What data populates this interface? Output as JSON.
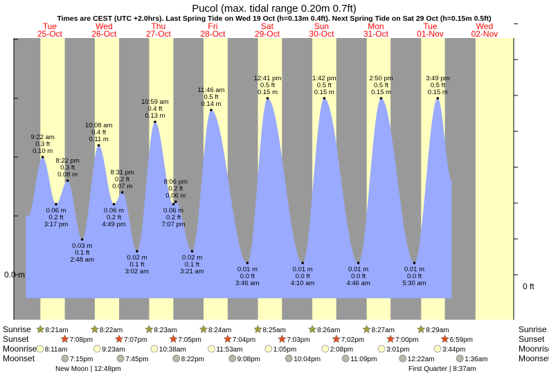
{
  "title": "Pucol (max. tidal range 0.20m 0.7ft)",
  "subtitle": "Times are CEST (UTC +2.0hrs). Last Spring Tide on Wed 19 Oct (h=0.13m 0.4ft). Next Spring Tide on Sat 29 Oct (h=0.15m 0.5ft)",
  "colors": {
    "night": "#999999",
    "day": "#ffffc0",
    "tide": "#99aaff",
    "date_text": "#ff0000",
    "sunset_star": "#e05020",
    "sunrise_star": "#a0a040"
  },
  "days": [
    {
      "dow": "Tue",
      "date": "25-Oct"
    },
    {
      "dow": "Wed",
      "date": "26-Oct"
    },
    {
      "dow": "Thu",
      "date": "27-Oct"
    },
    {
      "dow": "Fri",
      "date": "28-Oct"
    },
    {
      "dow": "Sat",
      "date": "29-Oct"
    },
    {
      "dow": "Sun",
      "date": "30-Oct"
    },
    {
      "dow": "Mon",
      "date": "31-Oct"
    },
    {
      "dow": "Tue",
      "date": "01-Nov"
    },
    {
      "dow": "Wed",
      "date": "02-Nov"
    }
  ],
  "chart_data": {
    "type": "area",
    "x_unit": "hours from 25-Oct 00:00",
    "y_unit": "m",
    "ylim": [
      -0.017,
      0.25
    ],
    "left_axis_label": "0.0 m",
    "right_axis_label": "0 ft",
    "extrema": [
      {
        "t": 2.9,
        "m": "0.05 m",
        "ft": "",
        "time": "",
        "h": 0.05,
        "show": false
      },
      {
        "t": 9.37,
        "m": "0.10 m",
        "ft": "0.3 ft",
        "time": "9:22 am",
        "h": 0.1,
        "type": "high"
      },
      {
        "t": 15.28,
        "m": "0.06 m",
        "ft": "0.2 ft",
        "time": "3:17 pm",
        "h": 0.06,
        "type": "low"
      },
      {
        "t": 20.37,
        "m": "0.08 m",
        "ft": "0.3 ft",
        "time": "8:22 pm",
        "h": 0.08,
        "type": "high"
      },
      {
        "t": 26.8,
        "m": "0.03 m",
        "ft": "0.1 ft",
        "time": "2:48 am",
        "h": 0.03,
        "type": "low"
      },
      {
        "t": 34.13,
        "m": "0.11 m",
        "ft": "0.4 ft",
        "time": "10:08 am",
        "h": 0.11,
        "type": "high"
      },
      {
        "t": 40.82,
        "m": "0.06 m",
        "ft": "0.2 ft",
        "time": "4:49 pm",
        "h": 0.06,
        "type": "low"
      },
      {
        "t": 44.52,
        "m": "0.07 m",
        "ft": "0.2 ft",
        "time": "8:31 pm",
        "h": 0.07,
        "type": "high"
      },
      {
        "t": 51.03,
        "m": "0.02 m",
        "ft": "0.1 ft",
        "time": "3:02 am",
        "h": 0.02,
        "type": "low"
      },
      {
        "t": 58.98,
        "m": "0.13 m",
        "ft": "0.4 ft",
        "time": "10:59 am",
        "h": 0.13,
        "type": "high"
      },
      {
        "t": 67.12,
        "m": "0.06 m",
        "ft": "0.2 ft",
        "time": "7:07 pm",
        "h": 0.06,
        "type": "low"
      },
      {
        "t": 68.1,
        "m": "0.06 m",
        "ft": "0.2 ft",
        "time": "8:06 pm",
        "h": 0.062,
        "type": "high"
      },
      {
        "t": 75.35,
        "m": "0.02 m",
        "ft": "0.1 ft",
        "time": "3:21 am",
        "h": 0.02,
        "type": "low"
      },
      {
        "t": 83.77,
        "m": "0.14 m",
        "ft": "0.5 ft",
        "time": "11:46 am",
        "h": 0.14,
        "type": "high"
      },
      {
        "t": 99.77,
        "m": "0.01 m",
        "ft": "0.0 ft",
        "time": "3:46 am",
        "h": 0.01,
        "type": "low"
      },
      {
        "t": 108.68,
        "m": "0.15 m",
        "ft": "0.5 ft",
        "time": "12:41 pm",
        "h": 0.15,
        "type": "high"
      },
      {
        "t": 124.17,
        "m": "0.01 m",
        "ft": "0.0 ft",
        "time": "4:10 am",
        "h": 0.01,
        "type": "low"
      },
      {
        "t": 133.7,
        "m": "0.15 m",
        "ft": "0.5 ft",
        "time": "1:42 pm",
        "h": 0.15,
        "type": "high"
      },
      {
        "t": 148.77,
        "m": "0.01 m",
        "ft": "0.0 ft",
        "time": "4:46 am",
        "h": 0.01,
        "type": "low"
      },
      {
        "t": 158.83,
        "m": "0.15 m",
        "ft": "0.5 ft",
        "time": "2:50 pm",
        "h": 0.15,
        "type": "high"
      },
      {
        "t": 173.5,
        "m": "0.01 m",
        "ft": "0.0 ft",
        "time": "5:30 am",
        "h": 0.01,
        "type": "low"
      },
      {
        "t": 183.82,
        "m": "0.15 m",
        "ft": "0.5 ft",
        "time": "3:49 pm",
        "h": 0.15,
        "type": "high"
      },
      {
        "t": 190.0,
        "m": "",
        "ft": "",
        "time": "",
        "h": 0.08,
        "show": false
      }
    ]
  },
  "astro_labels": {
    "sunrise": "Sunrise",
    "sunset": "Sunset",
    "moonrise": "Moonrise",
    "moonset": "Moonset"
  },
  "astro": [
    {
      "sunrise": "8:21am",
      "sunset": "7:08pm",
      "moonrise": "8:11am",
      "moonset": "7:15pm"
    },
    {
      "sunrise": "8:22am",
      "sunset": "7:07pm",
      "moonrise": "9:23am",
      "moonset": "7:45pm"
    },
    {
      "sunrise": "8:23am",
      "sunset": "7:05pm",
      "moonrise": "10:38am",
      "moonset": "8:22pm"
    },
    {
      "sunrise": "8:24am",
      "sunset": "7:04pm",
      "moonrise": "11:53am",
      "moonset": "9:08pm"
    },
    {
      "sunrise": "8:25am",
      "sunset": "7:03pm",
      "moonrise": "1:05pm",
      "moonset": "10:04pm"
    },
    {
      "sunrise": "8:26am",
      "sunset": "7:02pm",
      "moonrise": "2:08pm",
      "moonset": "11:09pm"
    },
    {
      "sunrise": "8:27am",
      "sunset": "7:00pm",
      "moonrise": "3:01pm",
      "moonset": "12:22am"
    },
    {
      "sunrise": "8:29am",
      "sunset": "6:59pm",
      "moonrise": "3:44pm",
      "moonset": "1:36am"
    }
  ],
  "moon_phases": [
    {
      "label": "New Moon",
      "time": "12:48pm"
    },
    {
      "label": "First Quarter",
      "time": "8:37am"
    }
  ]
}
